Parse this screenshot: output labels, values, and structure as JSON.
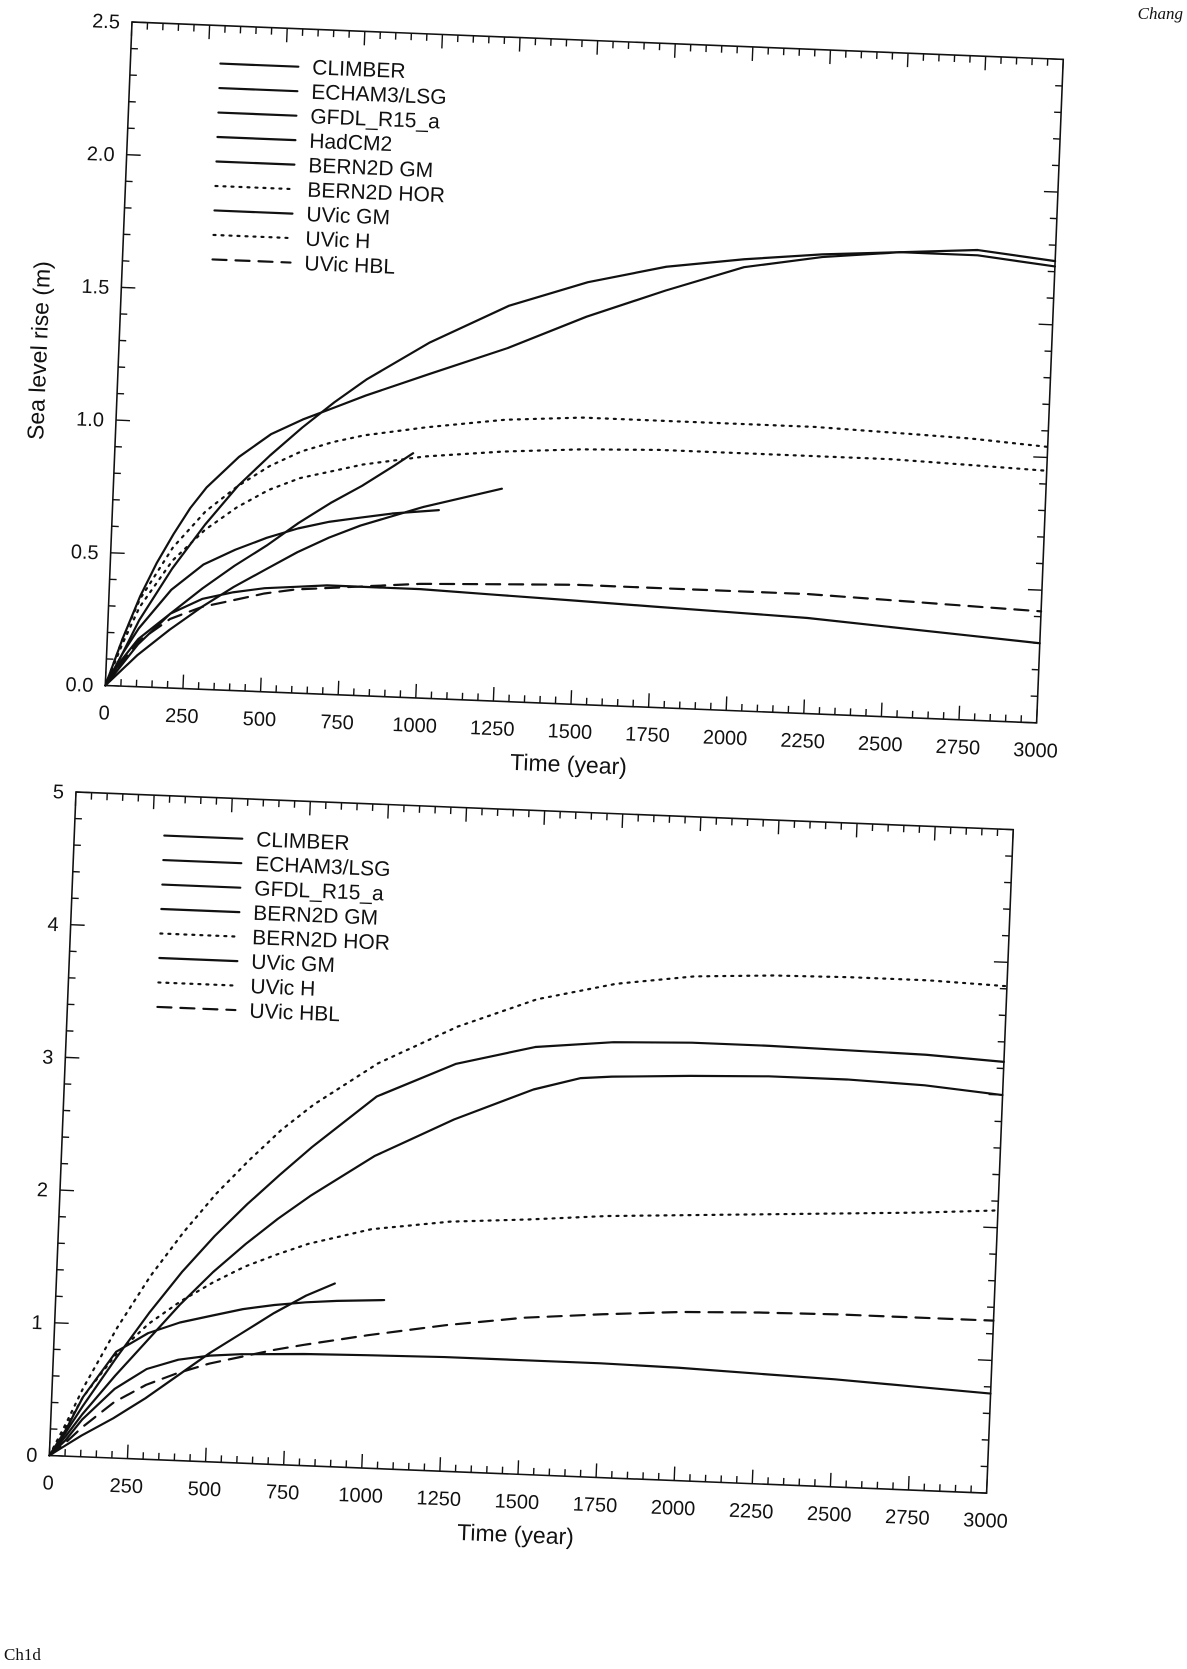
{
  "page": {
    "header_fragment": "Chang",
    "footer_fragment": "Ch1d"
  },
  "chart_data": [
    {
      "type": "line",
      "title": "",
      "xlabel": "Time (year)",
      "ylabel": "Sea level rise (m)",
      "xlim": [
        0,
        3000
      ],
      "ylim": [
        0,
        2.5
      ],
      "xticks": [
        0,
        250,
        500,
        750,
        1000,
        1250,
        1500,
        1750,
        2000,
        2250,
        2500,
        2750,
        3000
      ],
      "yticks": [
        0.0,
        0.5,
        1.0,
        1.5,
        2.0,
        2.5
      ],
      "ytick_labels": [
        "0.0",
        "0.5",
        "1.0",
        "1.5",
        "2.0",
        "2.5"
      ],
      "grid": false,
      "legend_position": "top-left",
      "series": [
        {
          "name": "CLIMBER",
          "style": "solid",
          "x": [
            0,
            50,
            100,
            150,
            200,
            250,
            300,
            400,
            500,
            600,
            700,
            800,
            1000,
            1250,
            1500,
            1750,
            2000,
            2250,
            2500,
            2750,
            3000
          ],
          "y": [
            0,
            0.18,
            0.34,
            0.47,
            0.58,
            0.68,
            0.76,
            0.88,
            0.97,
            1.03,
            1.08,
            1.13,
            1.22,
            1.33,
            1.46,
            1.57,
            1.67,
            1.72,
            1.75,
            1.75,
            1.72
          ]
        },
        {
          "name": "ECHAM3/LSG",
          "style": "solid",
          "x": [
            0,
            50,
            100,
            200,
            300,
            400,
            500,
            600,
            700,
            800,
            1000,
            1250,
            1500,
            1750,
            2000,
            2250,
            2500,
            2750,
            3000
          ],
          "y": [
            0,
            0.12,
            0.25,
            0.45,
            0.62,
            0.77,
            0.89,
            1.0,
            1.1,
            1.19,
            1.34,
            1.49,
            1.59,
            1.66,
            1.7,
            1.73,
            1.75,
            1.77,
            1.74
          ]
        },
        {
          "name": "GFDL_R15_a",
          "style": "solid",
          "x": [
            0,
            50,
            100,
            200,
            300,
            400,
            500,
            600,
            700,
            800,
            900,
            1050
          ],
          "y": [
            0,
            0.12,
            0.22,
            0.37,
            0.47,
            0.53,
            0.58,
            0.62,
            0.65,
            0.67,
            0.69,
            0.71
          ]
        },
        {
          "name": "HadCM2",
          "style": "solid",
          "x": [
            0,
            50,
            100,
            200,
            300,
            400,
            500,
            600,
            700,
            800,
            900,
            960
          ],
          "y": [
            0,
            0.08,
            0.16,
            0.28,
            0.38,
            0.47,
            0.55,
            0.64,
            0.72,
            0.79,
            0.87,
            0.92
          ]
        },
        {
          "name": "BERN2D GM",
          "style": "solid",
          "x": [
            0,
            50,
            100,
            200,
            300,
            400,
            500,
            600,
            700,
            800,
            1000,
            1250
          ],
          "y": [
            0,
            0.06,
            0.12,
            0.22,
            0.31,
            0.39,
            0.46,
            0.53,
            0.59,
            0.64,
            0.72,
            0.8
          ]
        },
        {
          "name": "BERN2D HOR",
          "style": "dotted",
          "x": [
            0,
            50,
            100,
            200,
            300,
            400,
            500,
            600,
            700,
            800,
            1000,
            1250,
            1500,
            1750,
            2000,
            2250,
            2500,
            2750,
            3000
          ],
          "y": [
            0,
            0.16,
            0.3,
            0.48,
            0.6,
            0.69,
            0.76,
            0.81,
            0.84,
            0.87,
            0.91,
            0.94,
            0.96,
            0.97,
            0.97,
            0.97,
            0.97,
            0.96,
            0.95
          ]
        },
        {
          "name": "UVic GM",
          "style": "solid",
          "x": [
            0,
            50,
            100,
            200,
            300,
            400,
            500,
            600,
            700,
            800,
            1000,
            1250,
            1500,
            1750,
            2000,
            2250,
            2500,
            2750,
            3000
          ],
          "y": [
            0,
            0.1,
            0.18,
            0.28,
            0.34,
            0.37,
            0.39,
            0.4,
            0.41,
            0.41,
            0.41,
            0.4,
            0.39,
            0.38,
            0.37,
            0.36,
            0.34,
            0.32,
            0.3
          ]
        },
        {
          "name": "UVic H",
          "style": "dotted",
          "x": [
            0,
            50,
            100,
            200,
            300,
            400,
            500,
            600,
            700,
            800,
            1000,
            1250,
            1500,
            1750,
            2000,
            2250,
            2500,
            2750,
            3000
          ],
          "y": [
            0,
            0.18,
            0.33,
            0.53,
            0.67,
            0.77,
            0.85,
            0.91,
            0.95,
            0.98,
            1.02,
            1.06,
            1.08,
            1.08,
            1.08,
            1.08,
            1.07,
            1.06,
            1.04
          ]
        },
        {
          "name": "UVic HBL",
          "style": "dashed",
          "x": [
            0,
            50,
            100,
            200,
            300,
            400,
            500,
            600,
            700,
            800,
            1000,
            1250,
            1500,
            1750,
            2000,
            2250,
            2500,
            2750,
            3000
          ],
          "y": [
            0,
            0.09,
            0.17,
            0.26,
            0.31,
            0.34,
            0.37,
            0.39,
            0.4,
            0.41,
            0.43,
            0.44,
            0.45,
            0.45,
            0.45,
            0.45,
            0.44,
            0.43,
            0.42
          ]
        }
      ]
    },
    {
      "type": "line",
      "title": "",
      "xlabel": "Time (year)",
      "ylabel": "Sea level rise (m)",
      "xlim": [
        0,
        3000
      ],
      "ylim": [
        0,
        5
      ],
      "xticks": [
        0,
        250,
        500,
        750,
        1000,
        1250,
        1500,
        1750,
        2000,
        2250,
        2500,
        2750,
        3000
      ],
      "yticks": [
        0,
        1,
        2,
        3,
        4,
        5
      ],
      "ytick_labels": [
        "0",
        "1",
        "2",
        "3",
        "4",
        "5"
      ],
      "grid": false,
      "legend_position": "top-left",
      "series": [
        {
          "name": "CLIMBER",
          "style": "solid",
          "x": [
            0,
            50,
            100,
            200,
            300,
            400,
            500,
            600,
            700,
            800,
            1000,
            1250,
            1500,
            1650,
            1750,
            2000,
            2250,
            2500,
            2750,
            3000
          ],
          "y": [
            0,
            0.15,
            0.32,
            0.62,
            0.9,
            1.18,
            1.43,
            1.65,
            1.85,
            2.03,
            2.35,
            2.65,
            2.9,
            3.0,
            3.02,
            3.05,
            3.07,
            3.07,
            3.05,
            3.0
          ]
        },
        {
          "name": "ECHAM3/LSG",
          "style": "solid",
          "x": [
            0,
            50,
            100,
            200,
            300,
            400,
            500,
            600,
            700,
            800,
            1000,
            1250,
            1500,
            1750,
            2000,
            2250,
            2500,
            2750,
            3000
          ],
          "y": [
            0,
            0.18,
            0.38,
            0.75,
            1.1,
            1.42,
            1.7,
            1.95,
            2.18,
            2.4,
            2.8,
            3.07,
            3.22,
            3.28,
            3.3,
            3.3,
            3.29,
            3.28,
            3.25
          ]
        },
        {
          "name": "GFDL_R15_a",
          "style": "solid",
          "x": [
            0,
            50,
            100,
            200,
            300,
            400,
            500,
            600,
            700,
            800,
            900,
            1050
          ],
          "y": [
            0,
            0.2,
            0.45,
            0.8,
            0.95,
            1.04,
            1.1,
            1.16,
            1.2,
            1.23,
            1.25,
            1.27
          ]
        },
        {
          "name": "BERN2D GM",
          "style": "solid",
          "x": [
            0,
            50,
            100,
            200,
            300,
            400,
            500,
            600,
            700,
            800,
            890
          ],
          "y": [
            0,
            0.08,
            0.16,
            0.3,
            0.46,
            0.64,
            0.82,
            0.98,
            1.14,
            1.28,
            1.38
          ]
        },
        {
          "name": "BERN2D HOR",
          "style": "dotted",
          "x": [
            0,
            50,
            100,
            200,
            300,
            400,
            500,
            600,
            700,
            800,
            1000,
            1250,
            1500,
            1750,
            2000,
            2250,
            2500,
            2750,
            3000
          ],
          "y": [
            0,
            0.22,
            0.45,
            0.78,
            1.02,
            1.2,
            1.35,
            1.48,
            1.58,
            1.67,
            1.8,
            1.88,
            1.92,
            1.97,
            2.0,
            2.03,
            2.06,
            2.09,
            2.13
          ]
        },
        {
          "name": "UVic GM",
          "style": "solid",
          "x": [
            0,
            50,
            100,
            200,
            300,
            400,
            500,
            600,
            700,
            800,
            1000,
            1250,
            1500,
            1750,
            2000,
            2250,
            2500,
            2750,
            3000
          ],
          "y": [
            0,
            0.12,
            0.28,
            0.52,
            0.68,
            0.76,
            0.8,
            0.82,
            0.83,
            0.84,
            0.85,
            0.86,
            0.86,
            0.86,
            0.85,
            0.83,
            0.81,
            0.78,
            0.75
          ]
        },
        {
          "name": "UVic H",
          "style": "dotted",
          "x": [
            0,
            50,
            100,
            200,
            300,
            400,
            500,
            600,
            700,
            800,
            1000,
            1250,
            1500,
            1750,
            2000,
            2250,
            2500,
            2750,
            3000
          ],
          "y": [
            0,
            0.25,
            0.52,
            0.98,
            1.38,
            1.72,
            2.02,
            2.28,
            2.52,
            2.72,
            3.05,
            3.35,
            3.58,
            3.72,
            3.8,
            3.83,
            3.84,
            3.84,
            3.82
          ]
        },
        {
          "name": "UVic HBL",
          "style": "dashed",
          "x": [
            0,
            50,
            100,
            200,
            300,
            400,
            500,
            600,
            700,
            800,
            1000,
            1250,
            1500,
            1750,
            2000,
            2250,
            2500,
            2750,
            3000
          ],
          "y": [
            0,
            0.1,
            0.22,
            0.42,
            0.56,
            0.66,
            0.74,
            0.8,
            0.86,
            0.91,
            1.0,
            1.1,
            1.18,
            1.23,
            1.27,
            1.29,
            1.3,
            1.3,
            1.3
          ]
        }
      ]
    }
  ]
}
